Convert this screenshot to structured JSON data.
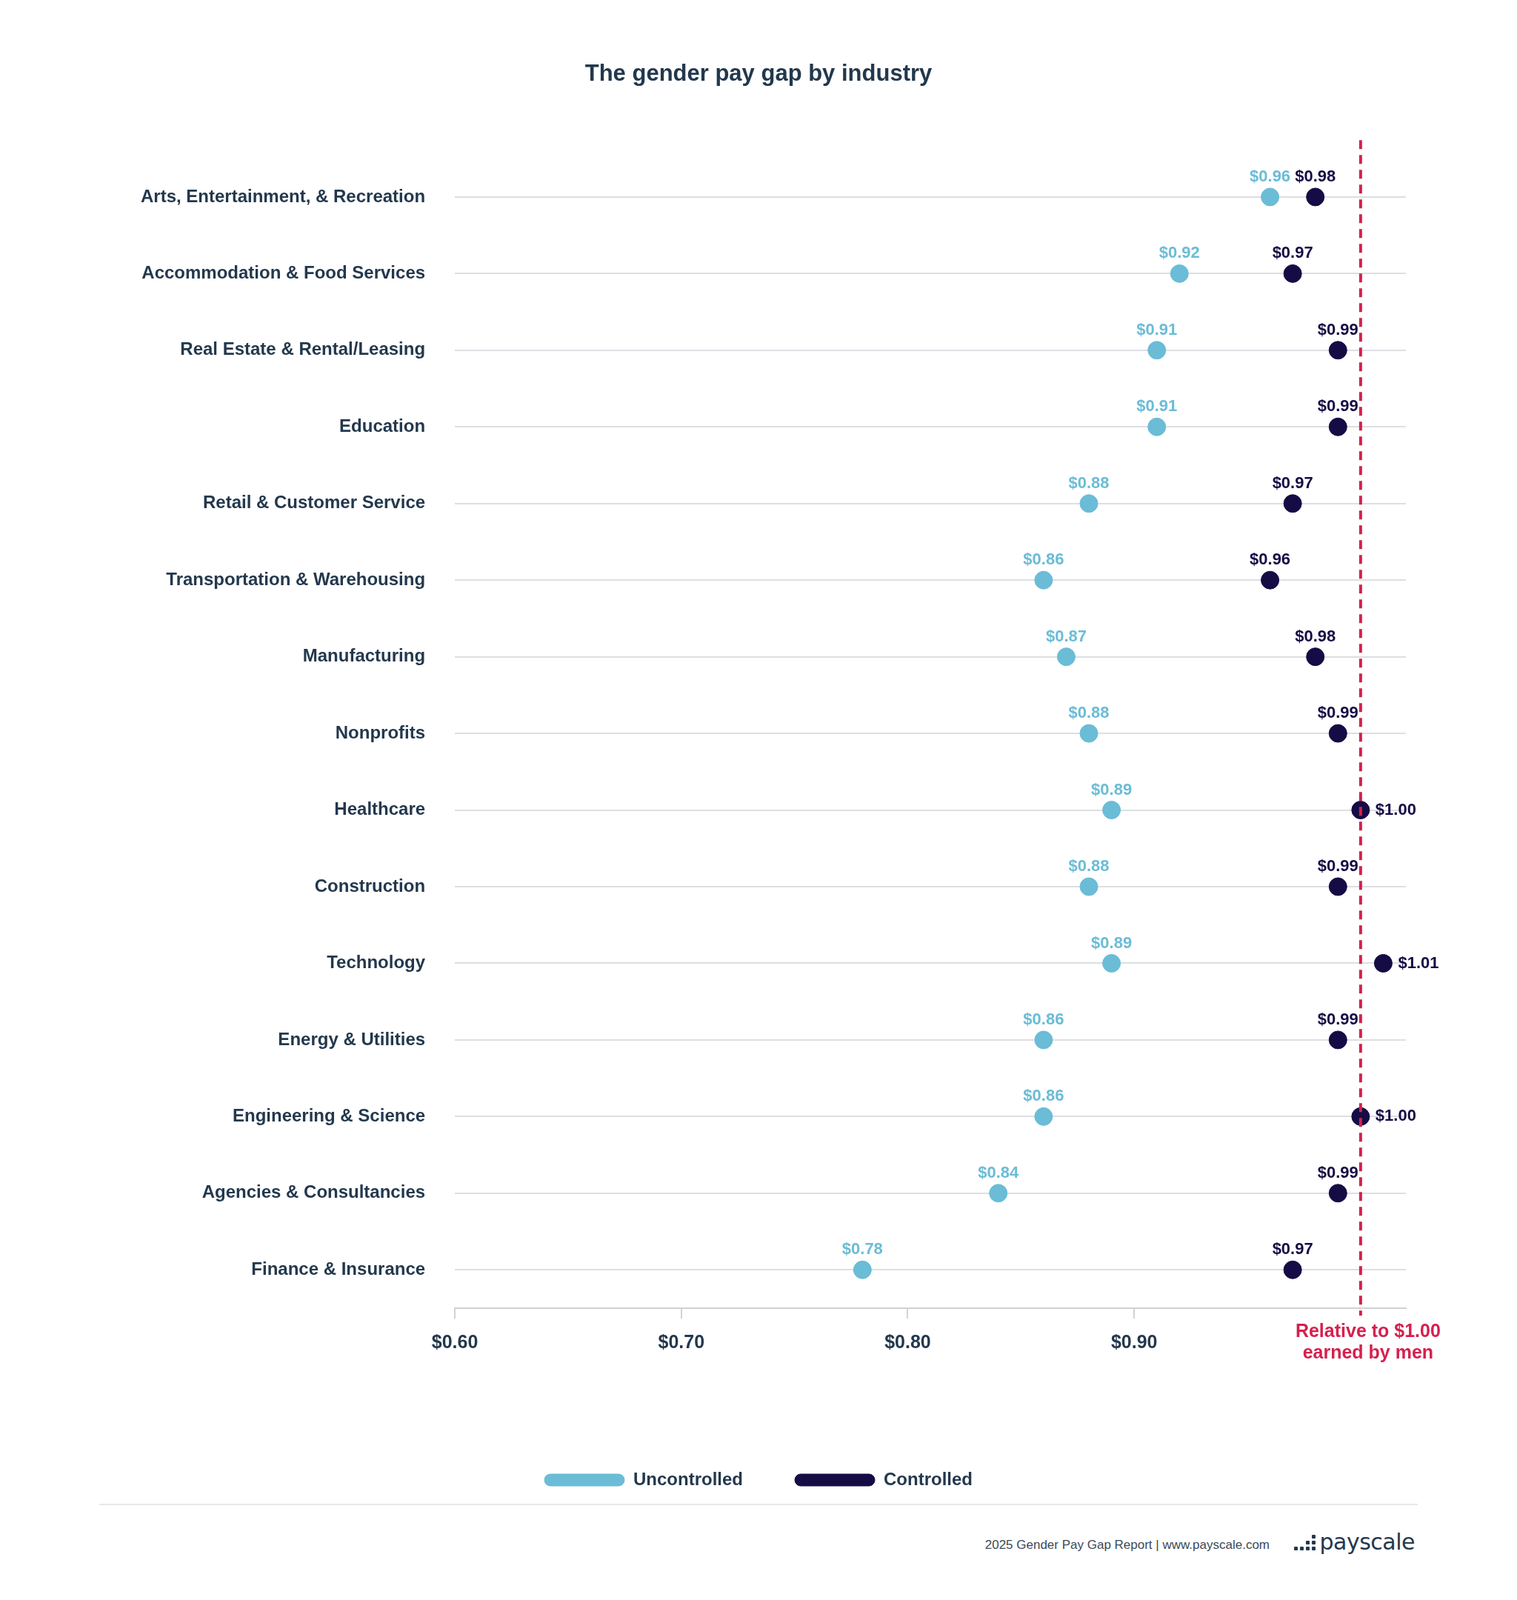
{
  "chart_data": {
    "type": "dumbbell",
    "title": "The gender pay gap by industry",
    "orientation": "horizontal",
    "categories": [
      "Arts, Entertainment, & Recreation",
      "Accommodation & Food Services",
      "Real Estate & Rental/Leasing",
      "Education",
      "Retail & Customer Service",
      "Transportation & Warehousing",
      "Manufacturing",
      "Nonprofits",
      "Healthcare",
      "Construction",
      "Technology",
      "Energy & Utilities",
      "Engineering & Science",
      "Agencies & Consultancies",
      "Finance & Insurance"
    ],
    "series": [
      {
        "name": "Uncontrolled",
        "color": "#6bbcd6",
        "marker": "circle",
        "values": [
          0.96,
          0.92,
          0.91,
          0.91,
          0.88,
          0.86,
          0.87,
          0.88,
          0.89,
          0.88,
          0.89,
          0.86,
          0.86,
          0.84,
          0.78
        ],
        "value_labels": [
          "$0.96",
          "$0.92",
          "$0.91",
          "$0.91",
          "$0.88",
          "$0.86",
          "$0.87",
          "$0.88",
          "$0.89",
          "$0.88",
          "$0.89",
          "$0.86",
          "$0.86",
          "$0.84",
          "$0.78"
        ]
      },
      {
        "name": "Controlled",
        "color": "#150c45",
        "marker": "circle",
        "values": [
          0.98,
          0.97,
          0.99,
          0.99,
          0.97,
          0.96,
          0.98,
          0.99,
          1.0,
          0.99,
          1.01,
          0.99,
          1.0,
          0.99,
          0.97
        ],
        "value_labels": [
          "$0.98",
          "$0.97",
          "$0.99",
          "$0.99",
          "$0.97",
          "$0.96",
          "$0.98",
          "$0.99",
          "$1.00",
          "$0.99",
          "$1.01",
          "$0.99",
          "$1.00",
          "$0.99",
          "$0.97"
        ]
      }
    ],
    "xlim": [
      0.6,
      1.02
    ],
    "xticks": [
      {
        "value": 0.6,
        "label": "$0.60"
      },
      {
        "value": 0.7,
        "label": "$0.70"
      },
      {
        "value": 0.8,
        "label": "$0.80"
      },
      {
        "value": 0.9,
        "label": "$0.90"
      }
    ],
    "data_labels": true,
    "grid": true,
    "legend": "bottom",
    "annotations": [
      {
        "x": 1.0,
        "text": [
          "Relative to $1.00",
          "earned by men"
        ],
        "color": "#d6204e",
        "line_style": "dashed"
      }
    ],
    "footer": {
      "source": "2025 Gender Pay Gap Report  |  www.payscale.com",
      "logo": "payscale"
    }
  }
}
